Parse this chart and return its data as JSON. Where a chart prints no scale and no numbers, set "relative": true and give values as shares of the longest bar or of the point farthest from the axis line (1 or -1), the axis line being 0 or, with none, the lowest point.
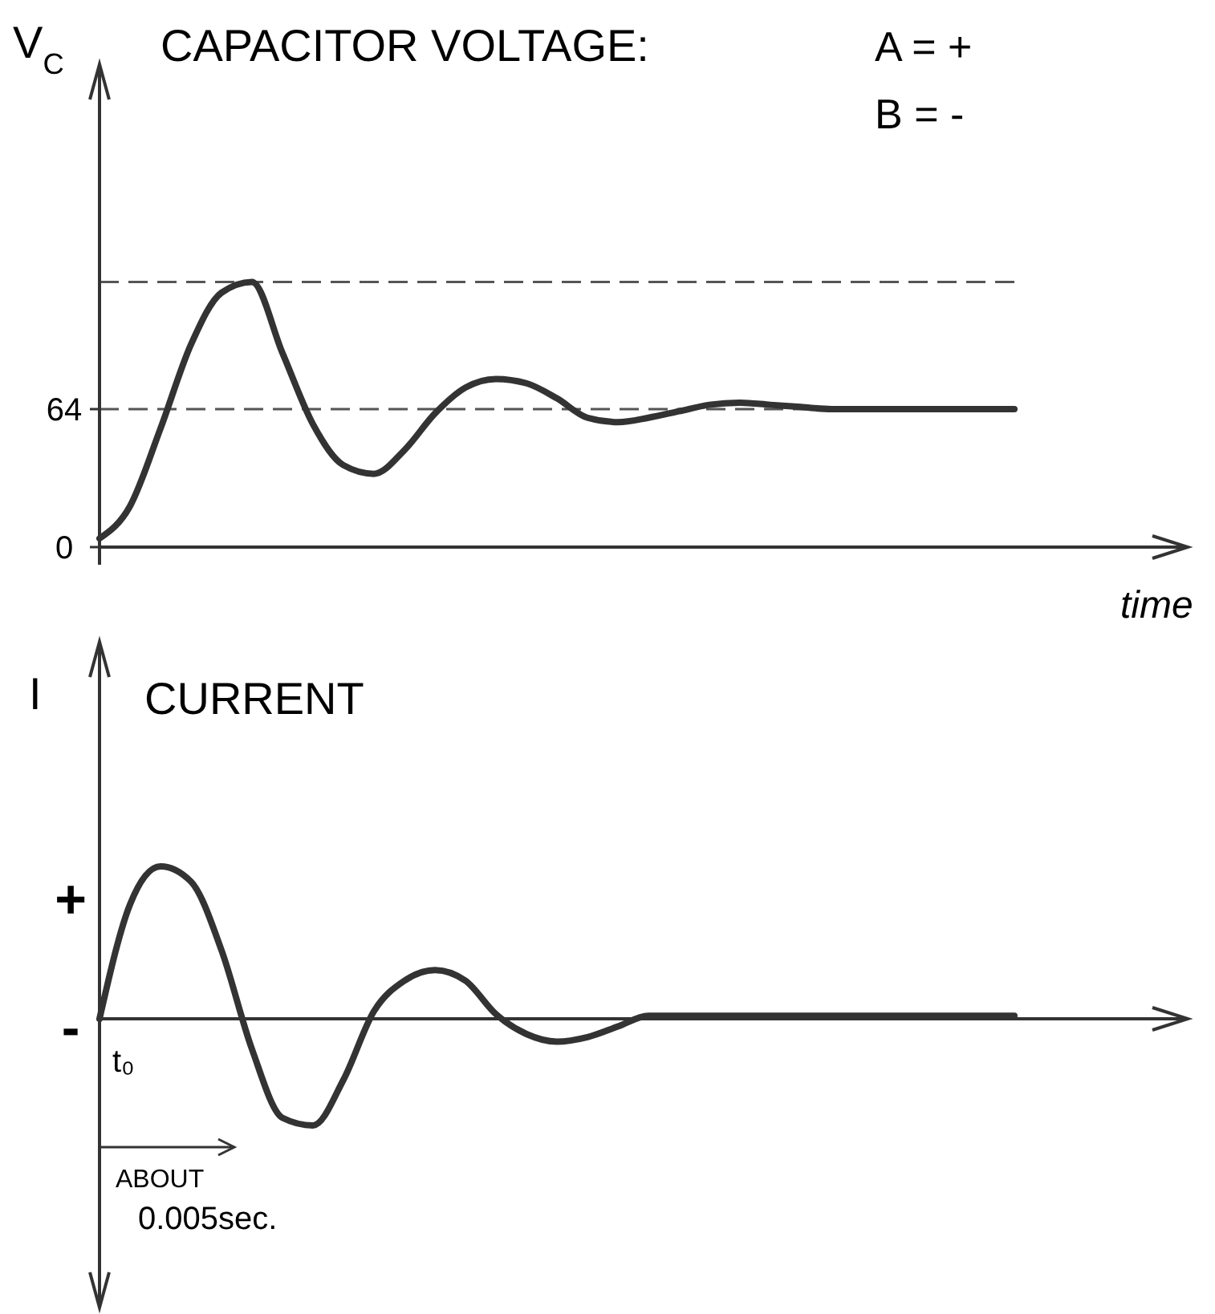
{
  "chart_data": [
    {
      "type": "line",
      "title": "CAPACITOR VOLTAGE:",
      "ylabel": "V$_{C}$",
      "xlabel": "time",
      "annotations": [
        "A = +",
        "B = -"
      ],
      "categories": [
        null,
        null,
        null,
        null,
        null,
        null,
        null,
        null,
        null,
        null,
        null,
        null,
        null,
        null,
        null,
        null,
        null,
        null,
        null,
        null,
        null,
        null,
        null,
        null,
        null,
        null,
        null,
        null,
        null,
        null,
        null
      ],
      "series": [
        {
          "color": "#333333",
          "values": [
            4,
            19,
            55,
            94,
            118,
            123,
            90,
            57,
            38,
            34,
            45,
            62,
            74,
            78,
            76,
            69,
            60,
            58,
            60,
            63,
            66,
            67,
            66,
            65,
            64,
            64,
            64,
            64,
            64,
            64,
            64
          ]
        }
      ],
      "ylim": [
        0,
        224
      ],
      "yticks": [
        0,
        64
      ],
      "ref_lines": [
        {
          "axis": "y",
          "value": 123,
          "color": "#555555",
          "line_style": "dashed"
        },
        {
          "axis": "y",
          "value": 64,
          "color": "#555555",
          "line_style": "dashed"
        }
      ]
    },
    {
      "type": "line",
      "title": "CURRENT",
      "ylabel": "I",
      "annotations": [
        "+",
        "-",
        "t₀",
        "ABOUT 0.005sec."
      ],
      "relative": true,
      "categories": [
        null,
        null,
        null,
        null,
        null,
        null,
        null,
        null,
        null,
        null,
        null,
        null,
        null,
        null,
        null,
        null,
        null,
        null,
        null,
        null,
        null,
        null,
        null,
        null,
        null,
        null,
        null,
        null,
        null,
        null,
        null
      ],
      "series": [
        {
          "color": "#333333",
          "values": [
            0,
            0.75,
            1,
            0.9,
            0.45,
            -0.2,
            -0.65,
            -0.7,
            -0.4,
            0.05,
            0.25,
            0.32,
            0.25,
            0.03,
            -0.1,
            -0.15,
            -0.12,
            -0.05,
            0.02,
            0.02,
            0.02,
            0.02,
            0.02,
            0.02,
            0.02,
            0.02,
            0.02,
            0.02,
            0.02,
            0.02,
            0.02
          ]
        }
      ]
    }
  ]
}
